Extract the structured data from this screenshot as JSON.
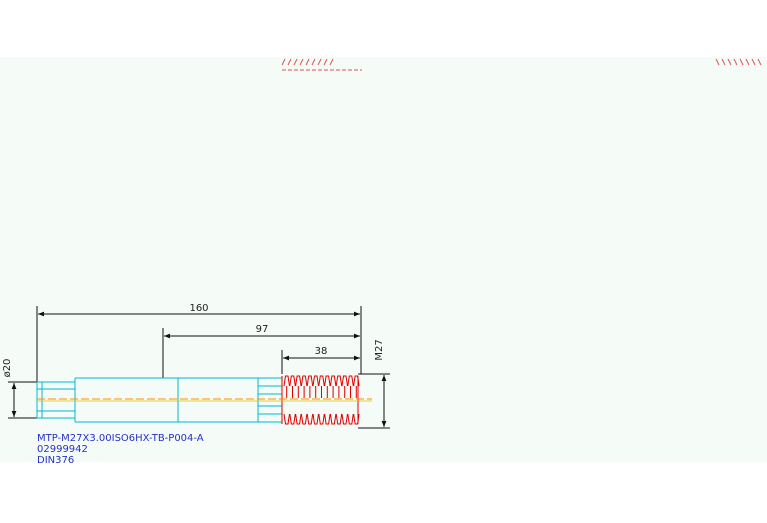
{
  "drawing": {
    "dimensions": {
      "overall_length": "160",
      "body_length": "97",
      "thread_length": "38",
      "shank_diameter": "ø20",
      "thread_size": "M27"
    },
    "part_label": {
      "line1": "MTP-M27X3.00ISO6HX-TB-P004-A",
      "line2": "02999942",
      "line3": "DIN376"
    },
    "colors": {
      "outline": "#00b8d4",
      "thread": "#e00000",
      "dimension": "#111111",
      "centerline": "#ff8c00",
      "text_blue": "#2630c8"
    }
  }
}
